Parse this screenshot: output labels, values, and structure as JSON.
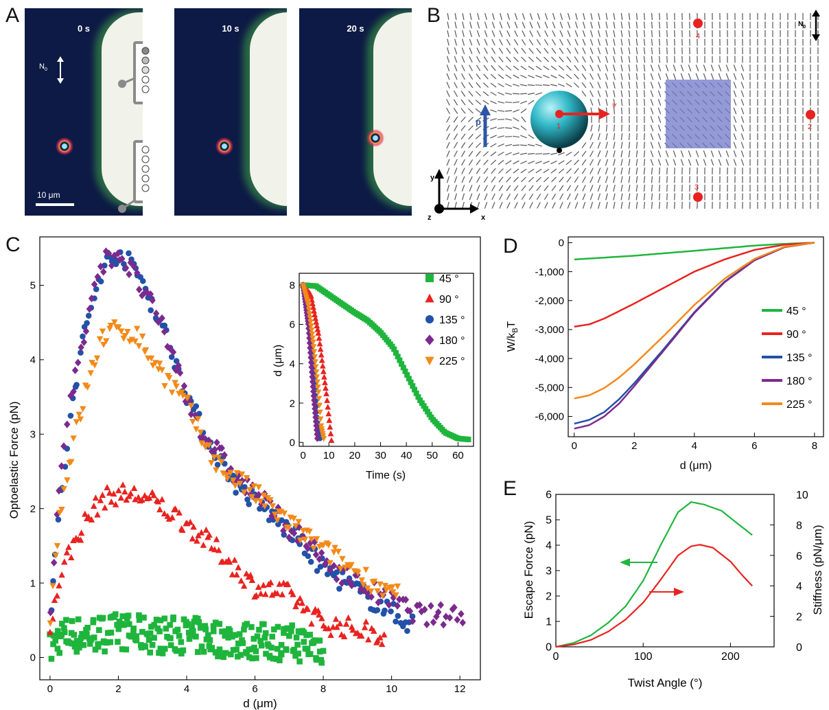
{
  "panels": {
    "A": "A",
    "B": "B",
    "C": "C",
    "D": "D",
    "E": "E"
  },
  "panel_a": {
    "times": [
      "0 s",
      "10 s",
      "20 s"
    ],
    "director_label": "N",
    "director_sub": "0",
    "scalebar": "10 μm",
    "particle_positions": [
      0.0,
      0.0,
      0.35
    ]
  },
  "panel_b": {
    "director_label": "N",
    "director_sub": "0",
    "axes": {
      "x": "x",
      "y": "y",
      "z": "z"
    },
    "polarization_label": "p",
    "velocity_label": "v",
    "points": [
      "1",
      "2",
      "3",
      "4"
    ],
    "colors": {
      "sphere": "#31b8c8",
      "region": "#6f78c8",
      "arrow": "#e8231f",
      "p_arrow": "#2d56a8"
    }
  },
  "chart_data": [
    {
      "id": "C",
      "type": "scatter",
      "xlabel": "d (μm)",
      "ylabel": "Optoelastic Force (pN)",
      "xlim": [
        -0.3,
        12.6
      ],
      "ylim": [
        -0.3,
        5.65
      ],
      "xticks": [
        0,
        2,
        4,
        6,
        8,
        10,
        12
      ],
      "yticks": [
        0,
        1,
        2,
        3,
        4,
        5
      ],
      "legend_placement": "right of inset",
      "series": [
        {
          "name": "45 °",
          "color": "#1fb53d",
          "marker": "square",
          "xmax": 8.0,
          "keys": [
            [
              0,
              0.1
            ],
            [
              0.3,
              0.3
            ],
            [
              1,
              0.3
            ],
            [
              2,
              0.35
            ],
            [
              3,
              0.3
            ],
            [
              4,
              0.3
            ],
            [
              5,
              0.25
            ],
            [
              6,
              0.22
            ],
            [
              7,
              0.2
            ],
            [
              8,
              0.15
            ]
          ]
        },
        {
          "name": "90 °",
          "color": "#e8231f",
          "marker": "triangle",
          "xmax": 9.8,
          "keys": [
            [
              0,
              0.3
            ],
            [
              0.3,
              1.15
            ],
            [
              1,
              1.8
            ],
            [
              1.5,
              2.12
            ],
            [
              2,
              2.2
            ],
            [
              2.6,
              2.17
            ],
            [
              3.2,
              2.05
            ],
            [
              4,
              1.8
            ],
            [
              5,
              1.4
            ],
            [
              6,
              0.95
            ],
            [
              7,
              0.85
            ],
            [
              8,
              0.45
            ],
            [
              9,
              0.38
            ],
            [
              9.8,
              0.3
            ]
          ]
        },
        {
          "name": "135 °",
          "color": "#2251a8",
          "marker": "circle",
          "xmax": 10.6,
          "keys": [
            [
              0,
              0.5
            ],
            [
              0.3,
              2.1
            ],
            [
              0.6,
              3.2
            ],
            [
              1,
              4.35
            ],
            [
              1.5,
              5.2
            ],
            [
              2,
              5.45
            ],
            [
              2.6,
              5.15
            ],
            [
              3,
              4.75
            ],
            [
              3.5,
              4.2
            ],
            [
              4,
              3.55
            ],
            [
              4.5,
              3.0
            ],
            [
              5,
              2.65
            ],
            [
              5.5,
              2.3
            ],
            [
              6,
              2.1
            ],
            [
              7,
              1.7
            ],
            [
              8,
              1.2
            ],
            [
              9,
              0.9
            ],
            [
              10,
              0.6
            ],
            [
              10.6,
              0.45
            ]
          ]
        },
        {
          "name": "180 °",
          "color": "#7b2a8e",
          "marker": "diamond",
          "xmax": 12.1,
          "keys": [
            [
              0,
              0.5
            ],
            [
              0.3,
              2.5
            ],
            [
              0.6,
              3.5
            ],
            [
              1,
              4.3
            ],
            [
              1.5,
              5.3
            ],
            [
              2,
              5.45
            ],
            [
              2.5,
              5.1
            ],
            [
              3,
              4.7
            ],
            [
              3.5,
              4.2
            ],
            [
              4,
              3.5
            ],
            [
              4.5,
              3.0
            ],
            [
              5,
              2.7
            ],
            [
              5.5,
              2.4
            ],
            [
              6,
              2.2
            ],
            [
              7,
              1.75
            ],
            [
              8,
              1.3
            ],
            [
              9,
              1.0
            ],
            [
              10,
              0.75
            ],
            [
              11,
              0.55
            ],
            [
              12,
              0.6
            ]
          ]
        },
        {
          "name": "225 °",
          "color": "#f28a1a",
          "marker": "triangle-down",
          "xmax": 10.2,
          "keys": [
            [
              0,
              0.5
            ],
            [
              0.3,
              2.0
            ],
            [
              0.6,
              2.7
            ],
            [
              1,
              3.5
            ],
            [
              1.5,
              4.3
            ],
            [
              2,
              4.4
            ],
            [
              2.5,
              4.35
            ],
            [
              3,
              4.0
            ],
            [
              3.5,
              3.7
            ],
            [
              4,
              3.4
            ],
            [
              4.5,
              2.9
            ],
            [
              5,
              2.55
            ],
            [
              6,
              2.2
            ],
            [
              7,
              1.8
            ],
            [
              8,
              1.45
            ],
            [
              9,
              1.15
            ],
            [
              10,
              0.85
            ]
          ]
        }
      ]
    },
    {
      "id": "C-inset",
      "type": "scatter",
      "xlabel": "Time (s)",
      "ylabel": "d (μm)",
      "xlim": [
        -1.5,
        66
      ],
      "ylim": [
        -0.2,
        8.6
      ],
      "xticks": [
        0,
        10,
        20,
        30,
        40,
        50,
        60
      ],
      "yticks": [
        0,
        2,
        4,
        6,
        8
      ],
      "series": [
        {
          "name": "45 °",
          "color": "#1fb53d",
          "marker": "square",
          "tmax": 64,
          "keys": [
            [
              0,
              8.0
            ],
            [
              5,
              7.95
            ],
            [
              10,
              7.5
            ],
            [
              20,
              6.6
            ],
            [
              25,
              6.2
            ],
            [
              30,
              5.6
            ],
            [
              35,
              4.8
            ],
            [
              40,
              3.5
            ],
            [
              45,
              2.2
            ],
            [
              50,
              1.2
            ],
            [
              55,
              0.5
            ],
            [
              60,
              0.2
            ],
            [
              64,
              0.15
            ]
          ]
        },
        {
          "name": "90 °",
          "color": "#e8231f",
          "marker": "triangle",
          "tmax": 11,
          "keys": [
            [
              0,
              8.0
            ],
            [
              3,
              7.5
            ],
            [
              6,
              5.5
            ],
            [
              9,
              2.5
            ],
            [
              11,
              0.1
            ]
          ]
        },
        {
          "name": "135 °",
          "color": "#2251a8",
          "marker": "circle",
          "tmax": 6.5,
          "keys": [
            [
              0,
              8.0
            ],
            [
              2,
              6.5
            ],
            [
              4,
              3.5
            ],
            [
              5.5,
              1.0
            ],
            [
              6.5,
              0.2
            ]
          ]
        },
        {
          "name": "180 °",
          "color": "#7b2a8e",
          "marker": "diamond",
          "tmax": 5.5,
          "keys": [
            [
              0,
              8.0
            ],
            [
              2,
              6.0
            ],
            [
              4,
              2.5
            ],
            [
              5.5,
              0.2
            ]
          ]
        },
        {
          "name": "225 °",
          "color": "#f28a1a",
          "marker": "triangle-down",
          "tmax": 8,
          "keys": [
            [
              0,
              8.0
            ],
            [
              2,
              7.0
            ],
            [
              4,
              5.0
            ],
            [
              6,
              2.5
            ],
            [
              7,
              0.8
            ],
            [
              8,
              0.2
            ]
          ]
        }
      ]
    },
    {
      "id": "D",
      "type": "line",
      "xlabel": "d (μm)",
      "ylabel": "W/k",
      "ylabel_sub": "B",
      "ylabel_tail": "T",
      "xlim": [
        -0.2,
        8.3
      ],
      "ylim": [
        -6700,
        200
      ],
      "xticks": [
        0,
        2,
        4,
        6,
        8
      ],
      "yticks": [
        0,
        -1000,
        -2000,
        -3000,
        -4000,
        -5000,
        -6000
      ],
      "ytick_labels": [
        "0",
        "-1,000",
        "-2,000",
        "-3,000",
        "-4,000",
        "-5,000",
        "-6,000"
      ],
      "legend_placement": "right",
      "series": [
        {
          "name": "45 °",
          "color": "#1fb53d",
          "points": [
            [
              0,
              -580
            ],
            [
              2,
              -450
            ],
            [
              4,
              -280
            ],
            [
              6,
              -100
            ],
            [
              7,
              -40
            ],
            [
              8,
              0
            ]
          ]
        },
        {
          "name": "90 °",
          "color": "#e8231f",
          "points": [
            [
              0,
              -2900
            ],
            [
              0.5,
              -2820
            ],
            [
              1,
              -2620
            ],
            [
              2,
              -2100
            ],
            [
              3,
              -1550
            ],
            [
              4,
              -1000
            ],
            [
              5,
              -580
            ],
            [
              6,
              -250
            ],
            [
              7,
              -70
            ],
            [
              8,
              0
            ]
          ]
        },
        {
          "name": "135 °",
          "color": "#2251a8",
          "points": [
            [
              0,
              -6250
            ],
            [
              0.5,
              -6120
            ],
            [
              1,
              -5850
            ],
            [
              1.5,
              -5400
            ],
            [
              2,
              -4850
            ],
            [
              3,
              -3650
            ],
            [
              4,
              -2400
            ],
            [
              5,
              -1350
            ],
            [
              6,
              -600
            ],
            [
              7,
              -150
            ],
            [
              8,
              0
            ]
          ]
        },
        {
          "name": "180 °",
          "color": "#7b2a8e",
          "points": [
            [
              0,
              -6420
            ],
            [
              0.5,
              -6300
            ],
            [
              1,
              -6000
            ],
            [
              1.5,
              -5550
            ],
            [
              2,
              -4950
            ],
            [
              3,
              -3700
            ],
            [
              4,
              -2430
            ],
            [
              5,
              -1370
            ],
            [
              6,
              -610
            ],
            [
              7,
              -155
            ],
            [
              8,
              0
            ]
          ]
        },
        {
          "name": "225 °",
          "color": "#f28a1a",
          "points": [
            [
              0,
              -5380
            ],
            [
              0.5,
              -5270
            ],
            [
              1,
              -5020
            ],
            [
              1.5,
              -4650
            ],
            [
              2,
              -4200
            ],
            [
              3,
              -3200
            ],
            [
              4,
              -2150
            ],
            [
              5,
              -1250
            ],
            [
              6,
              -560
            ],
            [
              7,
              -140
            ],
            [
              8,
              0
            ]
          ]
        }
      ]
    },
    {
      "id": "E",
      "type": "line",
      "xlabel": "Twist Angle (°)",
      "ylabel": "Escape Force (pN)",
      "ylabel_right": "Stiffness (pN/μm)",
      "xlim": [
        0,
        250
      ],
      "ylim": [
        0,
        6
      ],
      "ylim_right": [
        0,
        10
      ],
      "xticks": [
        0,
        100,
        200
      ],
      "yticks": [
        0,
        1,
        2,
        3,
        4,
        5,
        6
      ],
      "yticks_right": [
        0,
        2,
        4,
        6,
        8,
        10
      ],
      "series": [
        {
          "name": "Escape Force",
          "axis": "left",
          "color": "#1fb53d",
          "points": [
            [
              0,
              0
            ],
            [
              20,
              0.15
            ],
            [
              40,
              0.45
            ],
            [
              60,
              0.95
            ],
            [
              80,
              1.6
            ],
            [
              100,
              2.6
            ],
            [
              120,
              4.0
            ],
            [
              140,
              5.3
            ],
            [
              155,
              5.7
            ],
            [
              170,
              5.6
            ],
            [
              190,
              5.35
            ],
            [
              210,
              4.8
            ],
            [
              225,
              4.4
            ]
          ]
        },
        {
          "name": "Stiffness",
          "axis": "right",
          "color": "#e8231f",
          "points": [
            [
              0,
              0
            ],
            [
              20,
              0.15
            ],
            [
              40,
              0.45
            ],
            [
              60,
              1.0
            ],
            [
              80,
              1.8
            ],
            [
              100,
              2.9
            ],
            [
              120,
              4.4
            ],
            [
              140,
              6.0
            ],
            [
              155,
              6.6
            ],
            [
              165,
              6.7
            ],
            [
              180,
              6.5
            ],
            [
              200,
              5.6
            ],
            [
              215,
              4.6
            ],
            [
              225,
              4.0
            ]
          ]
        }
      ]
    }
  ]
}
